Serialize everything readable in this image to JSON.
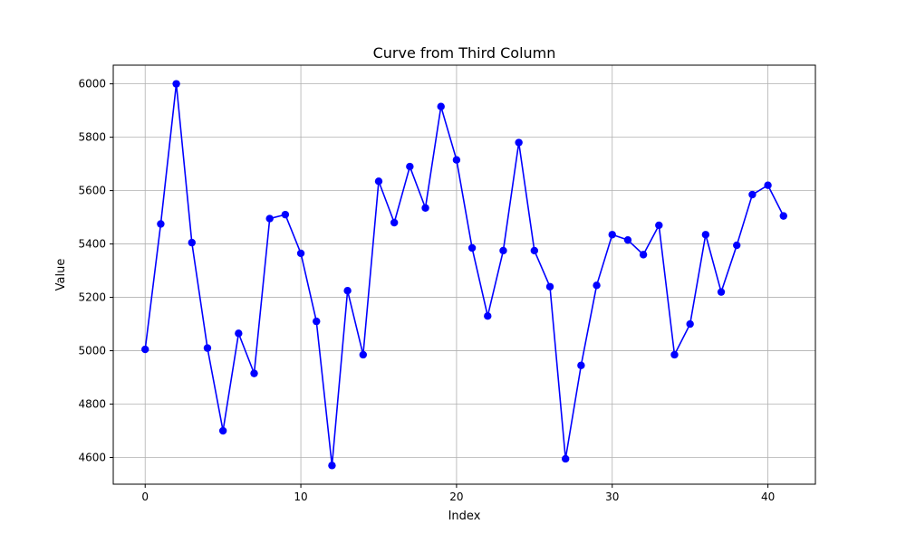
{
  "chart_data": {
    "type": "line",
    "title": "Curve from Third Column",
    "xlabel": "Index",
    "ylabel": "Value",
    "xlim": [
      -2.05,
      43.05
    ],
    "ylim": [
      4500,
      6070
    ],
    "x_ticks": [
      0,
      10,
      20,
      30,
      40
    ],
    "y_ticks": [
      4600,
      4800,
      5000,
      5200,
      5400,
      5600,
      5800,
      6000
    ],
    "grid": true,
    "series": [
      {
        "color": "#0000ff",
        "marker": "circle",
        "x": [
          0,
          1,
          2,
          3,
          4,
          5,
          6,
          7,
          8,
          9,
          10,
          11,
          12,
          13,
          14,
          15,
          16,
          17,
          18,
          19,
          20,
          21,
          22,
          23,
          24,
          25,
          26,
          27,
          28,
          29,
          30,
          31,
          32,
          33,
          34,
          35,
          36,
          37,
          38,
          39,
          40,
          41
        ],
        "values": [
          5005,
          5475,
          6000,
          5405,
          5010,
          4700,
          5065,
          4915,
          5495,
          5510,
          5365,
          5110,
          4570,
          5225,
          4985,
          5635,
          5480,
          5690,
          5535,
          5915,
          5715,
          5385,
          5130,
          5375,
          5780,
          5375,
          5240,
          4595,
          4945,
          5245,
          5435,
          5415,
          5360,
          5470,
          4985,
          5100,
          5435,
          5220,
          5395,
          5585,
          5620,
          5505
        ]
      }
    ]
  }
}
